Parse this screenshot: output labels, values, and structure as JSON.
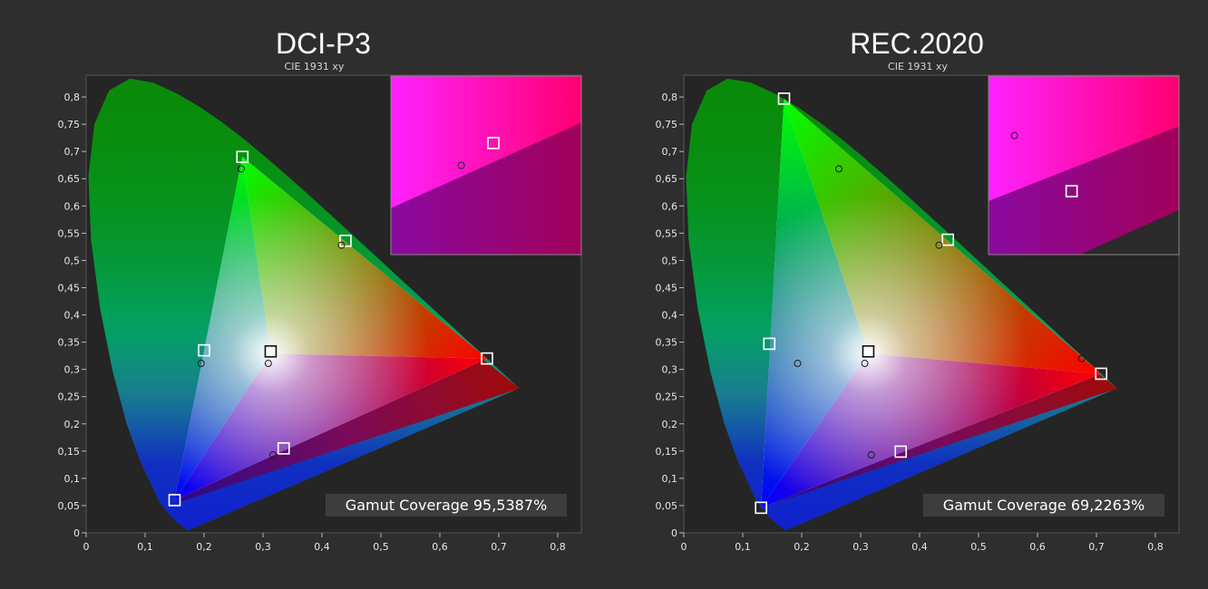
{
  "chart_data": [
    {
      "type": "scatter",
      "title": "DCI-P3",
      "subtitle": "CIE 1931 xy",
      "xlim": [
        0,
        0.84
      ],
      "ylim": [
        0,
        0.84
      ],
      "x_ticks": [
        "0",
        "0,1",
        "0,2",
        "0,3",
        "0,4",
        "0,5",
        "0,6",
        "0,7",
        "0,8"
      ],
      "y_ticks": [
        "0",
        "0,05",
        "0,1",
        "0,15",
        "0,2",
        "0,25",
        "0,3",
        "0,35",
        "0,4",
        "0,45",
        "0,5",
        "0,55",
        "0,6",
        "0,65",
        "0,7",
        "0,75",
        "0,8"
      ],
      "target_gamut": [
        [
          0.68,
          0.32
        ],
        [
          0.265,
          0.69
        ],
        [
          0.15,
          0.06
        ]
      ],
      "measured_gamut": [
        [
          0.735,
          0.265
        ],
        [
          0.265,
          0.67
        ],
        [
          0.155,
          0.055
        ]
      ],
      "targets": [
        [
          0.265,
          0.69
        ],
        [
          0.44,
          0.536
        ],
        [
          0.68,
          0.32
        ],
        [
          0.2,
          0.335
        ],
        [
          0.313,
          0.333
        ],
        [
          0.15,
          0.06
        ],
        [
          0.335,
          0.155
        ]
      ],
      "measured": [
        [
          0.263,
          0.668
        ],
        [
          0.433,
          0.528
        ],
        [
          0.195,
          0.311
        ],
        [
          0.309,
          0.311
        ],
        [
          0.317,
          0.143
        ]
      ],
      "inset_targets": [
        [
          0.68,
          0.32
        ]
      ],
      "inset_measured": [
        [
          0.658,
          0.31
        ]
      ],
      "inset_x": [
        0.61,
        0.74
      ],
      "inset_y": [
        0.27,
        0.35
      ],
      "coverage_label": "Gamut Coverage 95,5387%"
    },
    {
      "type": "scatter",
      "title": "REC.2020",
      "subtitle": "CIE 1931 xy",
      "xlim": [
        0,
        0.84
      ],
      "ylim": [
        0,
        0.84
      ],
      "x_ticks": [
        "0",
        "0,1",
        "0,2",
        "0,3",
        "0,4",
        "0,5",
        "0,6",
        "0,7",
        "0,8"
      ],
      "y_ticks": [
        "0",
        "0,05",
        "0,1",
        "0,15",
        "0,2",
        "0,25",
        "0,3",
        "0,35",
        "0,4",
        "0,45",
        "0,5",
        "0,55",
        "0,6",
        "0,65",
        "0,7",
        "0,75",
        "0,8"
      ],
      "target_gamut": [
        [
          0.708,
          0.292
        ],
        [
          0.17,
          0.797
        ],
        [
          0.131,
          0.046
        ]
      ],
      "measured_gamut": [
        [
          0.735,
          0.265
        ],
        [
          0.265,
          0.67
        ],
        [
          0.155,
          0.055
        ]
      ],
      "targets": [
        [
          0.17,
          0.797
        ],
        [
          0.448,
          0.538
        ],
        [
          0.708,
          0.292
        ],
        [
          0.145,
          0.347
        ],
        [
          0.313,
          0.333
        ],
        [
          0.131,
          0.046
        ],
        [
          0.368,
          0.149
        ]
      ],
      "measured": [
        [
          0.263,
          0.668
        ],
        [
          0.433,
          0.528
        ],
        [
          0.675,
          0.32
        ],
        [
          0.193,
          0.311
        ],
        [
          0.307,
          0.311
        ],
        [
          0.318,
          0.143
        ]
      ],
      "inset_targets": [
        [
          0.708,
          0.292
        ]
      ],
      "inset_measured": [
        [
          0.675,
          0.32
        ]
      ],
      "inset_x": [
        0.66,
        0.77
      ],
      "inset_y": [
        0.26,
        0.35
      ],
      "coverage_label": "Gamut Coverage 69,2263%"
    }
  ]
}
